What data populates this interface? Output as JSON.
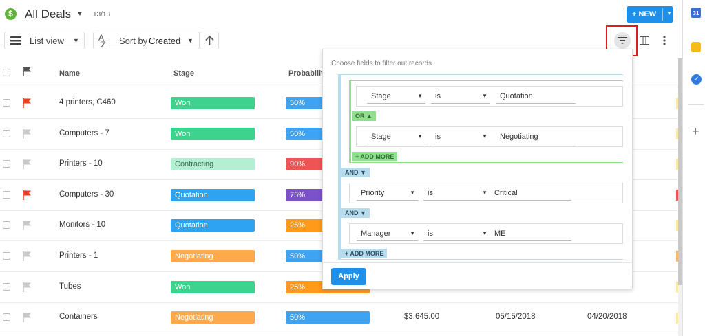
{
  "header": {
    "title": "All Deals",
    "count": "13/13",
    "new_button": "+ NEW"
  },
  "toolbar": {
    "view_label": "List view",
    "sort_prefix": "Sort by",
    "sort_value": "Created"
  },
  "table": {
    "columns": [
      "Name",
      "Stage",
      "Probability"
    ],
    "rows": [
      {
        "name": "4 printers, C460",
        "stage": "Won",
        "stage_color": "#3dd28d",
        "prob": "50%",
        "prob_color": "#3fa3f3",
        "flag": "red"
      },
      {
        "name": "Computers - 7",
        "stage": "Won",
        "stage_color": "#3dd28d",
        "prob": "50%",
        "prob_color": "#3fa3f3",
        "flag": "gray"
      },
      {
        "name": "Printers - 10",
        "stage": "Contracting",
        "stage_color": "#b5efd3",
        "prob": "90%",
        "prob_color": "#ee5454",
        "flag": "gray"
      },
      {
        "name": "Computers - 30",
        "stage": "Quotation",
        "stage_color": "#2ea4f0",
        "prob": "75%",
        "prob_color": "#7b52c8",
        "flag": "red"
      },
      {
        "name": "Monitors - 10",
        "stage": "Quotation",
        "stage_color": "#2ea4f0",
        "prob": "25%",
        "prob_color": "#ff9a1a",
        "flag": "gray"
      },
      {
        "name": "Printers - 1",
        "stage": "Negotiating",
        "stage_color": "#ffa94a",
        "prob": "50%",
        "prob_color": "#3fa3f3",
        "flag": "gray"
      },
      {
        "name": "Tubes",
        "stage": "Won",
        "stage_color": "#3dd28d",
        "prob": "25%",
        "prob_color": "#ff9a1a",
        "flag": "gray"
      },
      {
        "name": "Containers",
        "stage": "Negotiating",
        "stage_color": "#ffa94a",
        "prob": "50%",
        "prob_color": "#3fa3f3",
        "flag": "gray",
        "amount": "$3,645.00",
        "date1": "05/15/2018",
        "date2": "04/20/2018"
      }
    ]
  },
  "filter": {
    "title": "Choose fields to filter out records",
    "group1": {
      "cond1": {
        "field": "Stage",
        "op": "is",
        "value": "Quotation"
      },
      "or_label": "OR",
      "cond2": {
        "field": "Stage",
        "op": "is",
        "value": "Negotiating"
      },
      "add_more": "+ ADD MORE"
    },
    "and1": "AND",
    "cond3": {
      "field": "Priority",
      "op": "is",
      "value": "Critical"
    },
    "and2": "AND",
    "cond4": {
      "field": "Manager",
      "op": "is",
      "value": "ME"
    },
    "add_more": "+ ADD MORE",
    "apply": "Apply"
  },
  "right_strip": {
    "calendar_label": "31"
  },
  "colors": {
    "accent": "#1e90ea",
    "highlight_box": "#e01d1d"
  }
}
